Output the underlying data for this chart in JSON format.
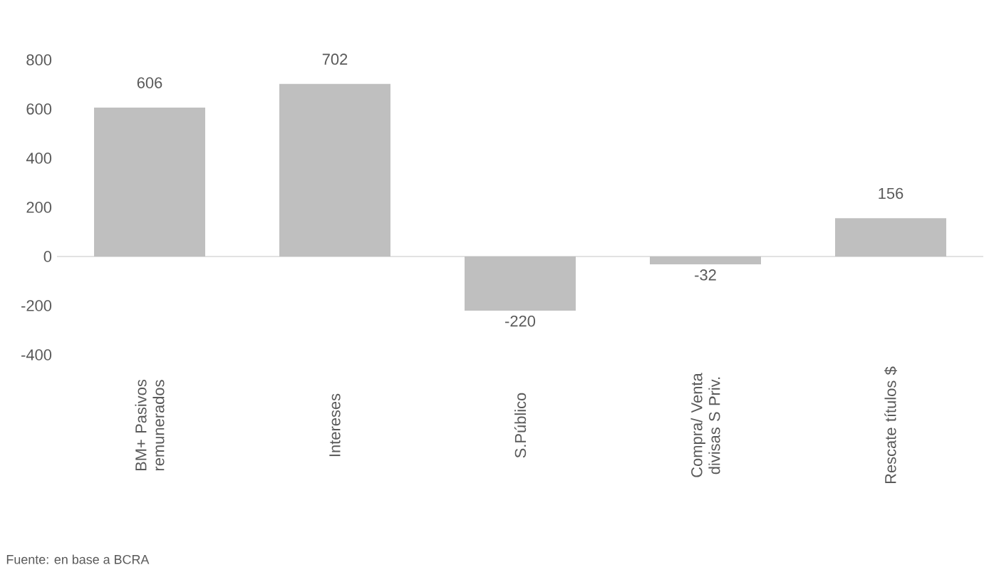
{
  "chart_data": {
    "type": "bar",
    "categories": [
      "BM+ Pasivos remunerados",
      "Intereses",
      "S.Público",
      "Compra/ Venta divisas S Priv.",
      "Rescate títulos $"
    ],
    "values": [
      606,
      702,
      -220,
      -32,
      156
    ],
    "color": "#bfbfbf",
    "ylim": [
      -400,
      800
    ],
    "yticks": [
      -400,
      -200,
      0,
      200,
      400,
      600,
      800
    ],
    "data_labels": true,
    "annotations": [
      "Fuente: en base a BCRA"
    ]
  }
}
